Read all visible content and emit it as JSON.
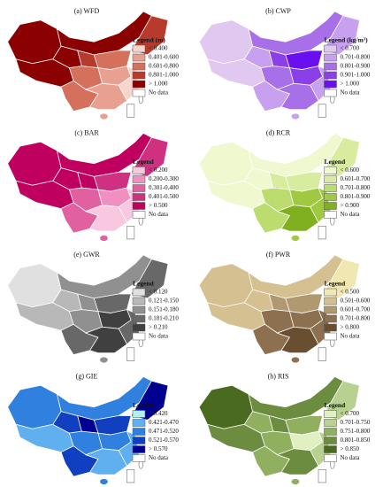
{
  "panels": [
    {
      "title": "(a) WFD",
      "legend_title": "Legend (m)",
      "no_data": "No data",
      "legend": [
        {
          "label": "< 0.400",
          "color": "#f7d4cc"
        },
        {
          "label": "0.401-0.600",
          "color": "#e8a090"
        },
        {
          "label": "0.601-0.800",
          "color": "#d4705c"
        },
        {
          "label": "0.801-1.000",
          "color": "#b83a2c"
        },
        {
          "label": "> 1.000",
          "color": "#8b0000"
        }
      ],
      "regions": [
        4,
        4,
        4,
        4,
        3,
        3,
        2,
        2,
        1,
        0,
        2,
        1,
        1
      ]
    },
    {
      "title": "(b) CWP",
      "legend_title": "Legend (kg/m³)",
      "no_data": "No data",
      "legend": [
        {
          "label": "< 0.700",
          "color": "#e0c8f0"
        },
        {
          "label": "0.701-0.800",
          "color": "#c8a0f0"
        },
        {
          "label": "0.801-0.900",
          "color": "#a870e8"
        },
        {
          "label": "0.901-1.000",
          "color": "#8a40e8"
        },
        {
          "label": "> 1.000",
          "color": "#6a10f0"
        }
      ],
      "regions": [
        0,
        0,
        1,
        2,
        1,
        3,
        4,
        2,
        3,
        1,
        1,
        2,
        1
      ]
    },
    {
      "title": "(c) BAR",
      "legend_title": "Legend",
      "no_data": "No data",
      "legend": [
        {
          "label": "< 0.200",
          "color": "#f8c8e0"
        },
        {
          "label": "0.200-0.300",
          "color": "#f090c0"
        },
        {
          "label": "0.301-0.400",
          "color": "#e060a0"
        },
        {
          "label": "0.401-0.500",
          "color": "#d03080"
        },
        {
          "label": "> 0.500",
          "color": "#c0005f"
        }
      ],
      "regions": [
        4,
        4,
        4,
        4,
        3,
        4,
        3,
        2,
        1,
        0,
        2,
        0,
        2
      ]
    },
    {
      "title": "(d) RCR",
      "legend_title": "Legend",
      "no_data": "No data",
      "legend": [
        {
          "label": "< 0.600",
          "color": "#f0f8d0"
        },
        {
          "label": "0.601-0.700",
          "color": "#d8eca0"
        },
        {
          "label": "0.701-0.800",
          "color": "#bcdc70"
        },
        {
          "label": "0.801-0.900",
          "color": "#a0c840"
        },
        {
          "label": "> 0.900",
          "color": "#80b020"
        }
      ],
      "regions": [
        0,
        0,
        0,
        0,
        1,
        1,
        1,
        2,
        3,
        3,
        2,
        4,
        3
      ]
    },
    {
      "title": "(e) GWR",
      "legend_title": "Legend",
      "no_data": "No data",
      "legend": [
        {
          "label": "< 0.120",
          "color": "#e0e0e0"
        },
        {
          "label": "0.121-0.150",
          "color": "#b8b8b8"
        },
        {
          "label": "0.151-0.180",
          "color": "#909090"
        },
        {
          "label": "0.181-0.210",
          "color": "#686868"
        },
        {
          "label": "> 0.210",
          "color": "#404040"
        }
      ],
      "regions": [
        0,
        1,
        1,
        2,
        3,
        2,
        3,
        2,
        4,
        3,
        3,
        4,
        2
      ]
    },
    {
      "title": "(f) PWR",
      "legend_title": "Legend",
      "no_data": "No data",
      "legend": [
        {
          "label": "< 0.500",
          "color": "#f0e8b0"
        },
        {
          "label": "0.501-0.600",
          "color": "#d4c090"
        },
        {
          "label": "0.601-0.700",
          "color": "#b09870"
        },
        {
          "label": "0.701-0.800",
          "color": "#8c7050"
        },
        {
          "label": "> 0.800",
          "color": "#6a4e30"
        }
      ],
      "regions": [
        1,
        1,
        1,
        1,
        0,
        2,
        2,
        3,
        3,
        3,
        3,
        4,
        3
      ]
    },
    {
      "title": "(g) GIE",
      "legend_title": "Legend",
      "no_data": "No data",
      "legend": [
        {
          "label": "< 0.420",
          "color": "#b0f0f0"
        },
        {
          "label": "0.421-0.470",
          "color": "#60b0f0"
        },
        {
          "label": "0.471-0.520",
          "color": "#3080e0"
        },
        {
          "label": "0.521-0.570",
          "color": "#1040c0"
        },
        {
          "label": "> 0.570",
          "color": "#000090"
        }
      ],
      "regions": [
        2,
        1,
        3,
        2,
        4,
        4,
        3,
        2,
        2,
        1,
        3,
        1,
        2
      ]
    },
    {
      "title": "(h) RIS",
      "legend_title": "Legend",
      "no_data": "No data",
      "legend": [
        {
          "label": "< 0.700",
          "color": "#e0f0c0"
        },
        {
          "label": "0.701-0.750",
          "color": "#b8d090"
        },
        {
          "label": "0.751-0.800",
          "color": "#90b060"
        },
        {
          "label": "0.801-0.850",
          "color": "#6c8c40"
        },
        {
          "label": "> 0.850",
          "color": "#4a6a20"
        }
      ],
      "regions": [
        4,
        3,
        2,
        3,
        1,
        3,
        2,
        2,
        0,
        1,
        2,
        3,
        2
      ]
    }
  ]
}
